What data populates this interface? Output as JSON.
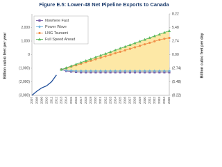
{
  "chart_data": {
    "type": "line",
    "title": "Figure E.5: Lower-48 Net Pipeline Exports to Canada",
    "y_label": "Billion cubic feet per year",
    "y2_label": "Billion cubic feet per day",
    "categories": [
      "2007",
      "2008",
      "2009",
      "2010",
      "2011",
      "2012",
      "2013",
      "2014",
      "2015",
      "2016",
      "2017",
      "2018",
      "2019",
      "2020",
      "2021",
      "2022",
      "2023",
      "2024",
      "2025",
      "2026",
      "2027",
      "2028",
      "2029",
      "2030",
      "2031",
      "2032",
      "2033",
      "2034",
      "2035"
    ],
    "ylim": [
      -3000,
      3000
    ],
    "yticks": [
      {
        "value": 2000,
        "label": "2,000"
      },
      {
        "value": 1000,
        "label": "1,000"
      },
      0,
      {
        "value": -1000,
        "label": "(1,000)"
      },
      {
        "value": -2000,
        "label": "(2,000)"
      },
      {
        "value": -3000,
        "label": "(3,000)"
      }
    ],
    "y2lim": [
      -8.22,
      8.22
    ],
    "y2ticks": [
      8.22,
      5.48,
      2.74,
      {
        "value": 0,
        "label": "0.00"
      },
      {
        "value": -2.74,
        "label": "(2.74)"
      },
      {
        "value": -5.48,
        "label": "(5.48)"
      },
      {
        "value": -8.22,
        "label": "(8.22)"
      }
    ],
    "legend": "upper left",
    "range_fill": "#fde8a6",
    "series": [
      {
        "color": "#1f4e9a",
        "values": [
          -3000,
          -2700,
          -2450,
          -2300,
          -2000,
          -1500,
          null,
          null,
          null,
          null,
          null,
          null,
          null,
          null,
          null,
          null,
          null,
          null,
          null,
          null,
          null,
          null,
          null,
          null,
          null,
          null,
          null,
          null,
          null
        ]
      },
      {
        "name": "Nowhere Fast",
        "color": "#7b62a8",
        "marker": "square",
        "values": [
          null,
          null,
          null,
          null,
          null,
          null,
          -1100,
          -1200,
          -1250,
          -1280,
          -1300,
          -1300,
          -1300,
          -1300,
          -1300,
          -1300,
          -1300,
          -1300,
          -1300,
          -1300,
          -1300,
          -1300,
          -1300,
          -1300,
          -1300,
          -1300,
          -1300,
          -1300,
          -1300
        ]
      },
      {
        "name": "Power Wave",
        "color": "#6fb0dc",
        "marker": "diamond",
        "values": [
          null,
          null,
          null,
          null,
          null,
          null,
          -1100,
          -1150,
          -1180,
          -1200,
          -1200,
          -1200,
          -1200,
          -1200,
          -1200,
          -1200,
          -1200,
          -1200,
          -1200,
          -1200,
          -1200,
          -1200,
          -1200,
          -1200,
          -1200,
          -1200,
          -1200,
          -1200,
          -1200
        ]
      },
      {
        "name": "LNG Tsunami",
        "color": "#f0904a",
        "marker": "circle",
        "values": [
          null,
          null,
          null,
          null,
          null,
          null,
          -1100,
          -1000,
          -890,
          -780,
          -670,
          -560,
          -450,
          -340,
          -230,
          -120,
          -10,
          100,
          210,
          320,
          430,
          540,
          650,
          760,
          870,
          980,
          1090,
          1170,
          1230
        ]
      },
      {
        "name": "Full Speed Ahead",
        "color": "#5cb85c",
        "marker": "triangle",
        "values": [
          null,
          null,
          null,
          null,
          null,
          null,
          -1100,
          -970,
          -840,
          -710,
          -580,
          -450,
          -320,
          -190,
          -60,
          70,
          200,
          330,
          460,
          590,
          720,
          850,
          980,
          1110,
          1240,
          1370,
          1500,
          1630,
          1750
        ]
      }
    ]
  }
}
